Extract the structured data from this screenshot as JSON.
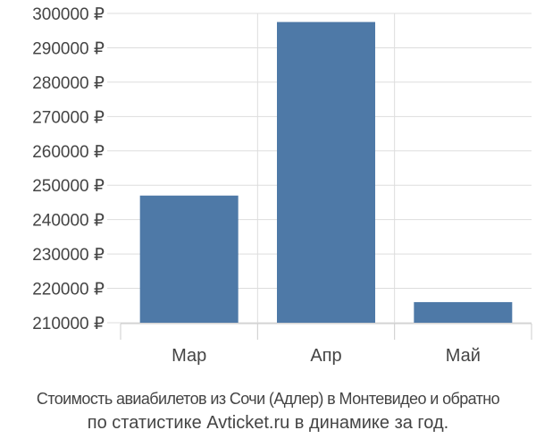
{
  "chart_data": {
    "type": "bar",
    "categories": [
      "Мар",
      "Апр",
      "Май"
    ],
    "values": [
      247000,
      297500,
      216000
    ],
    "ylim": [
      210000,
      300000
    ],
    "yticks": [
      210000,
      220000,
      230000,
      240000,
      250000,
      260000,
      270000,
      280000,
      290000,
      300000
    ],
    "currency_suffix": " ₽",
    "grid": true,
    "bar_color": "#4e79a7",
    "title": "Стоимость авиабилетов из Сочи (Адлер) в Монтевидео и обратно",
    "subtitle": "по статистике Avticket.ru в динамике за год."
  }
}
